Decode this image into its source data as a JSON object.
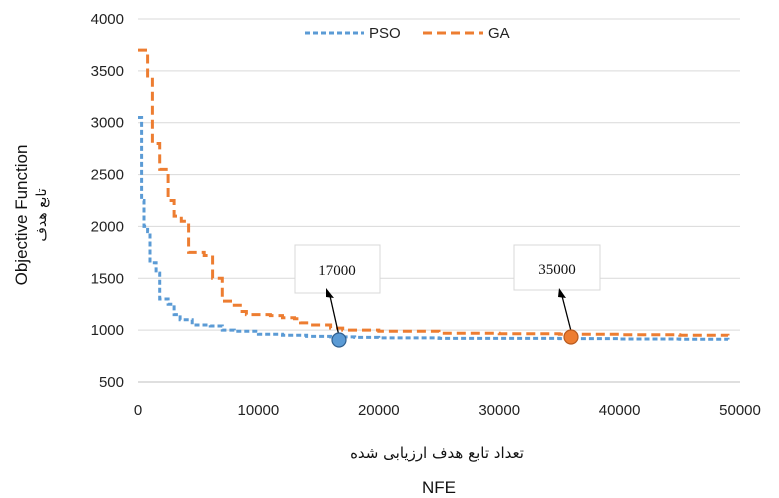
{
  "chart_data": {
    "type": "line",
    "title": "",
    "ylabel": "Objective Function",
    "ylabel_secondary": "تابع هدف",
    "xlabel": "NFE",
    "xlabel_secondary": "تعداد تابع هدف ارزیابی شده",
    "xlim": [
      0,
      50000
    ],
    "ylim": [
      500,
      4000
    ],
    "xticks": [
      "0",
      "10000",
      "20000",
      "30000",
      "40000",
      "50000"
    ],
    "yticks": [
      "500",
      "1000",
      "1500",
      "2000",
      "2500",
      "3000",
      "3500",
      "4000"
    ],
    "grid": "horizontal",
    "legend_position": "top",
    "series": [
      {
        "name": "PSO",
        "color": "#5B9BD5",
        "style": "short-dash",
        "points": [
          [
            0,
            3050
          ],
          [
            300,
            2250
          ],
          [
            500,
            2000
          ],
          [
            800,
            1950
          ],
          [
            1000,
            1650
          ],
          [
            1500,
            1550
          ],
          [
            1800,
            1300
          ],
          [
            2500,
            1250
          ],
          [
            3000,
            1150
          ],
          [
            3500,
            1100
          ],
          [
            4500,
            1050
          ],
          [
            6000,
            1040
          ],
          [
            7000,
            1000
          ],
          [
            8000,
            990
          ],
          [
            10000,
            960
          ],
          [
            12000,
            950
          ],
          [
            14000,
            940
          ],
          [
            16000,
            935
          ],
          [
            18000,
            930
          ],
          [
            20000,
            925
          ],
          [
            25000,
            920
          ],
          [
            30000,
            920
          ],
          [
            35000,
            918
          ],
          [
            40000,
            915
          ],
          [
            45000,
            912
          ],
          [
            49000,
            910
          ]
        ]
      },
      {
        "name": "GA",
        "color": "#ED7D31",
        "style": "long-dash",
        "points": [
          [
            0,
            3700
          ],
          [
            400,
            3700
          ],
          [
            800,
            3450
          ],
          [
            1200,
            2800
          ],
          [
            1800,
            2550
          ],
          [
            2500,
            2250
          ],
          [
            3000,
            2100
          ],
          [
            3600,
            2050
          ],
          [
            4200,
            1750
          ],
          [
            5500,
            1720
          ],
          [
            6200,
            1500
          ],
          [
            7000,
            1280
          ],
          [
            8000,
            1240
          ],
          [
            8500,
            1180
          ],
          [
            9000,
            1150
          ],
          [
            11000,
            1140
          ],
          [
            12000,
            1120
          ],
          [
            13000,
            1110
          ],
          [
            13500,
            1070
          ],
          [
            14500,
            1050
          ],
          [
            16000,
            1020
          ],
          [
            17000,
            1000
          ],
          [
            20000,
            990
          ],
          [
            25000,
            970
          ],
          [
            30000,
            965
          ],
          [
            35000,
            960
          ],
          [
            40000,
            955
          ],
          [
            45000,
            950
          ],
          [
            49000,
            948
          ]
        ]
      }
    ],
    "annotations": [
      {
        "label": "17000",
        "series": "PSO",
        "x": 16300,
        "y": 900,
        "color": "#5B9BD5"
      },
      {
        "label": "35000",
        "series": "GA",
        "x": 35300,
        "y": 930,
        "color": "#ED7D31"
      }
    ]
  }
}
